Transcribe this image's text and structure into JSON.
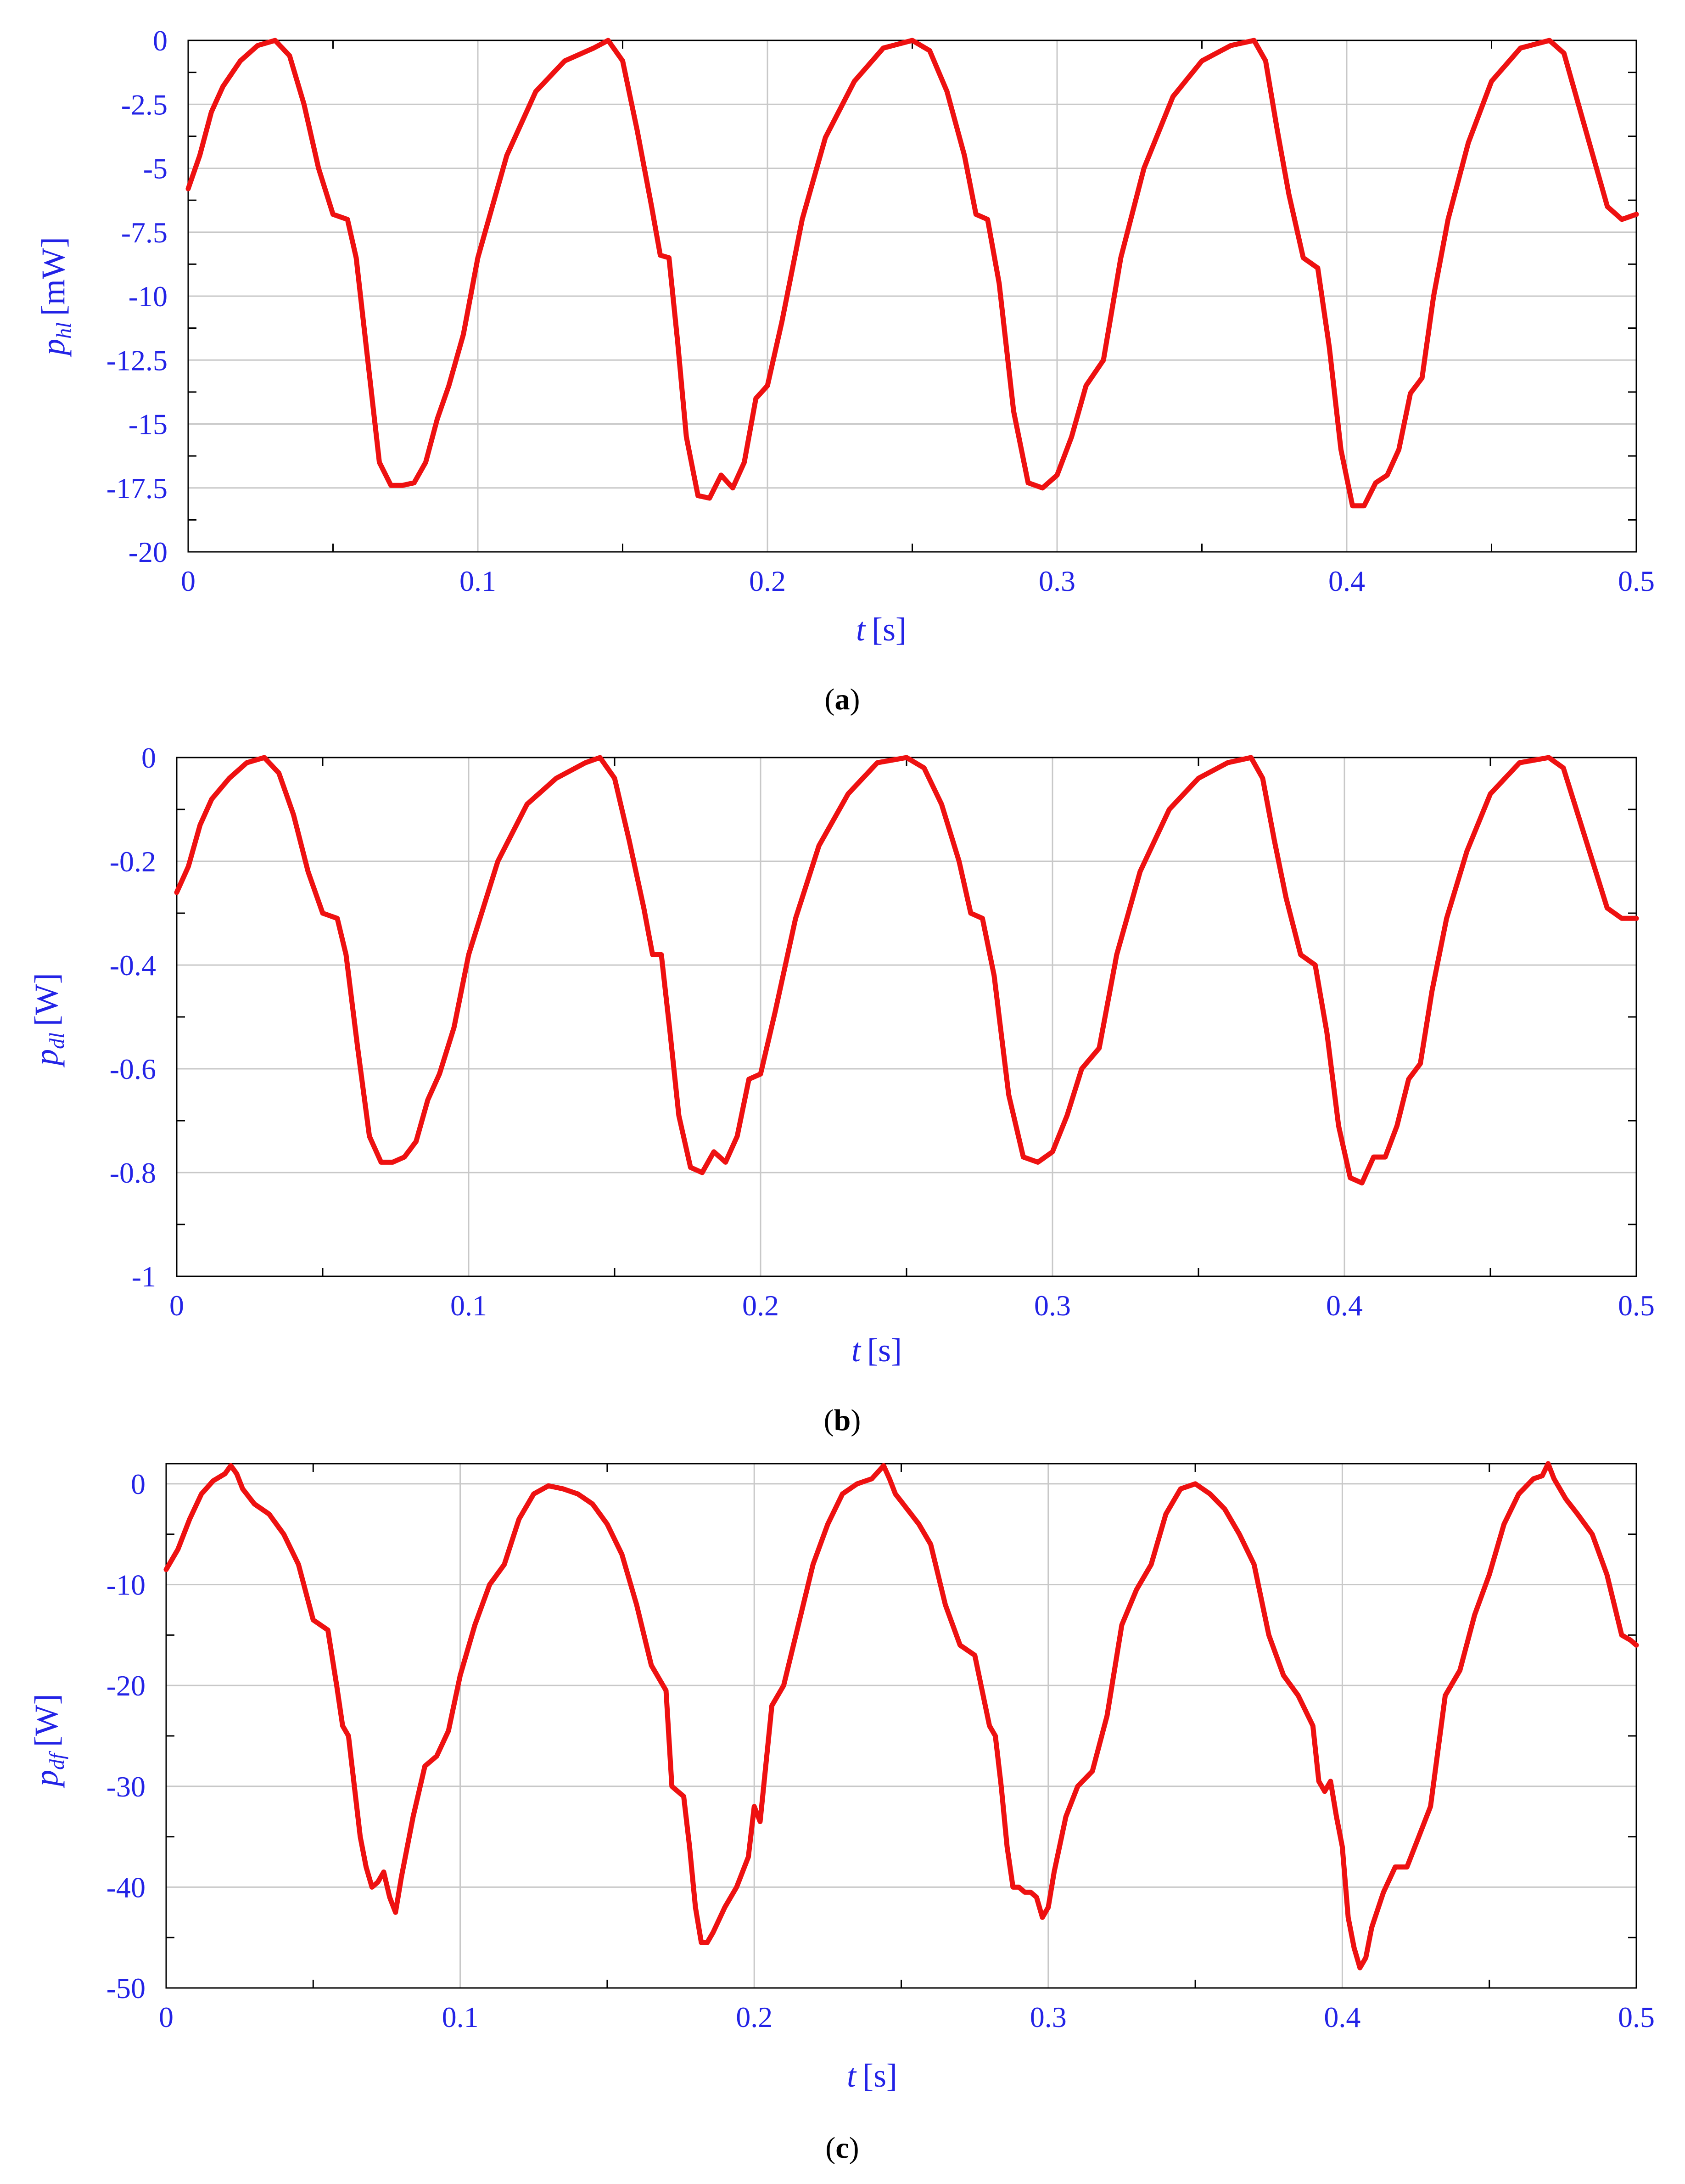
{
  "colors": {
    "line": "#ee1111",
    "axis_text": "#2323e6",
    "grid": "#c8c8c8",
    "frame": "#000000"
  },
  "chart_data": [
    {
      "type": "line",
      "caption": {
        "open": "(",
        "letter": "a",
        "close": ")"
      },
      "ylabel": {
        "symbol": "p",
        "subscript": "hl",
        "unit": "[mW]"
      },
      "xlabel": {
        "symbol": "t",
        "unit": "[s]"
      },
      "xlim": [
        0,
        0.5
      ],
      "ylim": [
        -20,
        0
      ],
      "xticks": [
        "0",
        "0.1",
        "0.2",
        "0.3",
        "0.4",
        "0.5"
      ],
      "yticks": [
        "0",
        "-2.5",
        "-5",
        "-7.5",
        "-10",
        "-12.5",
        "-15",
        "-17.5",
        "-20"
      ],
      "grid": true,
      "series": [
        {
          "x": [
            0.0,
            0.004,
            0.008,
            0.012,
            0.018,
            0.024,
            0.03,
            0.035,
            0.04,
            0.045,
            0.05,
            0.055,
            0.058,
            0.062,
            0.066,
            0.07,
            0.074,
            0.078,
            0.082,
            0.086,
            0.09,
            0.095,
            0.1,
            0.11,
            0.12,
            0.13,
            0.14,
            0.145,
            0.15,
            0.155,
            0.16,
            0.163,
            0.166,
            0.169,
            0.172,
            0.176,
            0.18,
            0.184,
            0.188,
            0.192,
            0.196,
            0.2,
            0.205,
            0.212,
            0.22,
            0.23,
            0.24,
            0.25,
            0.256,
            0.262,
            0.268,
            0.272,
            0.276,
            0.28,
            0.285,
            0.29,
            0.295,
            0.3,
            0.305,
            0.31,
            0.316,
            0.322,
            0.33,
            0.34,
            0.35,
            0.36,
            0.368,
            0.372,
            0.376,
            0.38,
            0.385,
            0.39,
            0.394,
            0.398,
            0.402,
            0.406,
            0.41,
            0.414,
            0.418,
            0.422,
            0.426,
            0.43,
            0.435,
            0.442,
            0.45,
            0.46,
            0.47,
            0.475,
            0.48,
            0.485,
            0.49,
            0.495,
            0.5
          ],
          "y": [
            -5.8,
            -4.5,
            -2.8,
            -1.8,
            -0.8,
            -0.2,
            0.0,
            -0.6,
            -2.5,
            -5.0,
            -6.8,
            -7.0,
            -8.5,
            -12.5,
            -16.5,
            -17.4,
            -17.4,
            -17.3,
            -16.5,
            -14.8,
            -13.5,
            -11.5,
            -8.5,
            -4.5,
            -2.0,
            -0.8,
            -0.3,
            0.0,
            -0.8,
            -3.5,
            -6.5,
            -8.4,
            -8.5,
            -11.8,
            -15.5,
            -17.8,
            -17.9,
            -17.0,
            -17.5,
            -16.5,
            -14.0,
            -13.5,
            -11.0,
            -7.0,
            -3.8,
            -1.6,
            -0.3,
            0.0,
            -0.4,
            -2.0,
            -4.5,
            -6.8,
            -7.0,
            -9.5,
            -14.5,
            -17.3,
            -17.5,
            -17.0,
            -15.5,
            -13.5,
            -12.5,
            -8.5,
            -5.0,
            -2.2,
            -0.8,
            -0.2,
            0.0,
            -0.8,
            -3.5,
            -6.0,
            -8.5,
            -8.9,
            -12.0,
            -16.0,
            -18.2,
            -18.2,
            -17.3,
            -17.0,
            -16.0,
            -13.8,
            -13.2,
            -10.0,
            -7.0,
            -4.0,
            -1.6,
            -0.3,
            0.0,
            -0.5,
            -2.5,
            -4.5,
            -6.5,
            -7.0,
            -6.8
          ]
        }
      ]
    },
    {
      "type": "line",
      "caption": {
        "open": "(",
        "letter": "b",
        "close": ")"
      },
      "ylabel": {
        "symbol": "p",
        "subscript": "dl",
        "unit": "[W]"
      },
      "xlabel": {
        "symbol": "t",
        "unit": "[s]"
      },
      "xlim": [
        0,
        0.5
      ],
      "ylim": [
        -1,
        0
      ],
      "xticks": [
        "0",
        "0.1",
        "0.2",
        "0.3",
        "0.4",
        "0.5"
      ],
      "yticks": [
        "0",
        "-0.2",
        "-0.4",
        "-0.6",
        "-0.8",
        "-1"
      ],
      "grid": true,
      "series": [
        {
          "x": [
            0.0,
            0.004,
            0.008,
            0.012,
            0.018,
            0.024,
            0.03,
            0.035,
            0.04,
            0.045,
            0.05,
            0.055,
            0.058,
            0.062,
            0.066,
            0.07,
            0.074,
            0.078,
            0.082,
            0.086,
            0.09,
            0.095,
            0.1,
            0.11,
            0.12,
            0.13,
            0.14,
            0.145,
            0.15,
            0.155,
            0.16,
            0.163,
            0.166,
            0.169,
            0.172,
            0.176,
            0.18,
            0.184,
            0.188,
            0.192,
            0.196,
            0.2,
            0.205,
            0.212,
            0.22,
            0.23,
            0.24,
            0.25,
            0.256,
            0.262,
            0.268,
            0.272,
            0.276,
            0.28,
            0.285,
            0.29,
            0.295,
            0.3,
            0.305,
            0.31,
            0.316,
            0.322,
            0.33,
            0.34,
            0.35,
            0.36,
            0.368,
            0.372,
            0.376,
            0.38,
            0.385,
            0.39,
            0.394,
            0.398,
            0.402,
            0.406,
            0.41,
            0.414,
            0.418,
            0.422,
            0.426,
            0.43,
            0.435,
            0.442,
            0.45,
            0.46,
            0.47,
            0.475,
            0.48,
            0.485,
            0.49,
            0.495,
            0.5
          ],
          "y": [
            -0.26,
            -0.21,
            -0.13,
            -0.08,
            -0.04,
            -0.01,
            0.0,
            -0.03,
            -0.11,
            -0.22,
            -0.3,
            -0.31,
            -0.38,
            -0.56,
            -0.73,
            -0.78,
            -0.78,
            -0.77,
            -0.74,
            -0.66,
            -0.61,
            -0.52,
            -0.38,
            -0.2,
            -0.09,
            -0.04,
            -0.01,
            0.0,
            -0.04,
            -0.16,
            -0.29,
            -0.38,
            -0.38,
            -0.53,
            -0.69,
            -0.79,
            -0.8,
            -0.76,
            -0.78,
            -0.73,
            -0.62,
            -0.61,
            -0.49,
            -0.31,
            -0.17,
            -0.07,
            -0.01,
            0.0,
            -0.02,
            -0.09,
            -0.2,
            -0.3,
            -0.31,
            -0.42,
            -0.65,
            -0.77,
            -0.78,
            -0.76,
            -0.69,
            -0.6,
            -0.56,
            -0.38,
            -0.22,
            -0.1,
            -0.04,
            -0.01,
            0.0,
            -0.04,
            -0.16,
            -0.27,
            -0.38,
            -0.4,
            -0.53,
            -0.71,
            -0.81,
            -0.82,
            -0.77,
            -0.77,
            -0.71,
            -0.62,
            -0.59,
            -0.45,
            -0.31,
            -0.18,
            -0.07,
            -0.01,
            0.0,
            -0.02,
            -0.11,
            -0.2,
            -0.29,
            -0.31,
            -0.31
          ]
        }
      ]
    },
    {
      "type": "line",
      "caption": {
        "open": "(",
        "letter": "c",
        "close": ")"
      },
      "ylabel": {
        "symbol": "p",
        "subscript": "df",
        "unit": "[W]"
      },
      "xlabel": {
        "symbol": "t",
        "unit": "[s]"
      },
      "xlim": [
        0,
        0.5
      ],
      "ylim": [
        -50,
        2
      ],
      "xticks": [
        "0",
        "0.1",
        "0.2",
        "0.3",
        "0.4",
        "0.5"
      ],
      "yticks": [
        "0",
        "-10",
        "-20",
        "-30",
        "-40",
        "-50"
      ],
      "grid": true,
      "series": [
        {
          "x": [
            0.0,
            0.004,
            0.008,
            0.012,
            0.016,
            0.02,
            0.022,
            0.024,
            0.026,
            0.03,
            0.035,
            0.04,
            0.045,
            0.05,
            0.055,
            0.058,
            0.06,
            0.062,
            0.064,
            0.066,
            0.068,
            0.07,
            0.072,
            0.074,
            0.076,
            0.078,
            0.08,
            0.084,
            0.088,
            0.092,
            0.096,
            0.1,
            0.105,
            0.11,
            0.115,
            0.12,
            0.125,
            0.13,
            0.135,
            0.14,
            0.145,
            0.15,
            0.155,
            0.16,
            0.165,
            0.17,
            0.172,
            0.174,
            0.176,
            0.178,
            0.18,
            0.182,
            0.184,
            0.186,
            0.19,
            0.194,
            0.198,
            0.2,
            0.202,
            0.206,
            0.21,
            0.215,
            0.22,
            0.225,
            0.23,
            0.235,
            0.24,
            0.244,
            0.246,
            0.248,
            0.252,
            0.256,
            0.26,
            0.265,
            0.27,
            0.275,
            0.28,
            0.282,
            0.284,
            0.286,
            0.288,
            0.29,
            0.292,
            0.294,
            0.296,
            0.298,
            0.3,
            0.302,
            0.306,
            0.31,
            0.315,
            0.32,
            0.325,
            0.33,
            0.335,
            0.34,
            0.345,
            0.35,
            0.355,
            0.36,
            0.365,
            0.37,
            0.375,
            0.38,
            0.385,
            0.39,
            0.392,
            0.394,
            0.396,
            0.398,
            0.4,
            0.402,
            0.404,
            0.406,
            0.408,
            0.41,
            0.414,
            0.418,
            0.422,
            0.426,
            0.43,
            0.435,
            0.44,
            0.445,
            0.45,
            0.455,
            0.46,
            0.465,
            0.468,
            0.47,
            0.472,
            0.476,
            0.48,
            0.485,
            0.49,
            0.495,
            0.498,
            0.5
          ],
          "y": [
            -8.5,
            -6.5,
            -3.5,
            -1.0,
            0.3,
            1.0,
            1.8,
            1.0,
            -0.5,
            -2.0,
            -3.0,
            -5.0,
            -8.0,
            -13.5,
            -14.5,
            -20.0,
            -24.0,
            -25.0,
            -30.0,
            -35.0,
            -38.0,
            -40.0,
            -39.5,
            -38.5,
            -41.0,
            -42.5,
            -39.0,
            -33.0,
            -28.0,
            -27.0,
            -24.5,
            -19.0,
            -14.0,
            -10.0,
            -8.0,
            -3.5,
            -1.0,
            -0.2,
            -0.5,
            -1.0,
            -2.0,
            -4.0,
            -7.0,
            -12.0,
            -18.0,
            -20.5,
            -30.0,
            -30.5,
            -31.0,
            -36.0,
            -42.0,
            -45.5,
            -45.5,
            -44.5,
            -42.0,
            -40.0,
            -37.0,
            -32.0,
            -33.5,
            -22.0,
            -20.0,
            -14.0,
            -8.0,
            -4.0,
            -1.0,
            0.0,
            0.5,
            1.8,
            0.5,
            -1.0,
            -2.5,
            -4.0,
            -6.0,
            -12.0,
            -16.0,
            -17.0,
            -24.0,
            -25.0,
            -30.0,
            -36.0,
            -40.0,
            -40.0,
            -40.5,
            -40.5,
            -41.0,
            -43.0,
            -42.0,
            -38.5,
            -33.0,
            -30.0,
            -28.5,
            -23.0,
            -14.0,
            -10.5,
            -8.0,
            -3.0,
            -0.5,
            0.0,
            -1.0,
            -2.5,
            -5.0,
            -8.0,
            -15.0,
            -19.0,
            -21.0,
            -24.0,
            -29.5,
            -30.5,
            -29.5,
            -33.0,
            -36.0,
            -43.0,
            -46.0,
            -48.0,
            -47.0,
            -44.0,
            -40.5,
            -38.0,
            -38.0,
            -35.0,
            -32.0,
            -21.0,
            -18.5,
            -13.0,
            -9.0,
            -4.0,
            -1.0,
            0.5,
            0.8,
            2.0,
            0.5,
            -1.5,
            -3.0,
            -5.0,
            -9.0,
            -15.0,
            -15.5,
            -16.0
          ]
        }
      ]
    }
  ]
}
